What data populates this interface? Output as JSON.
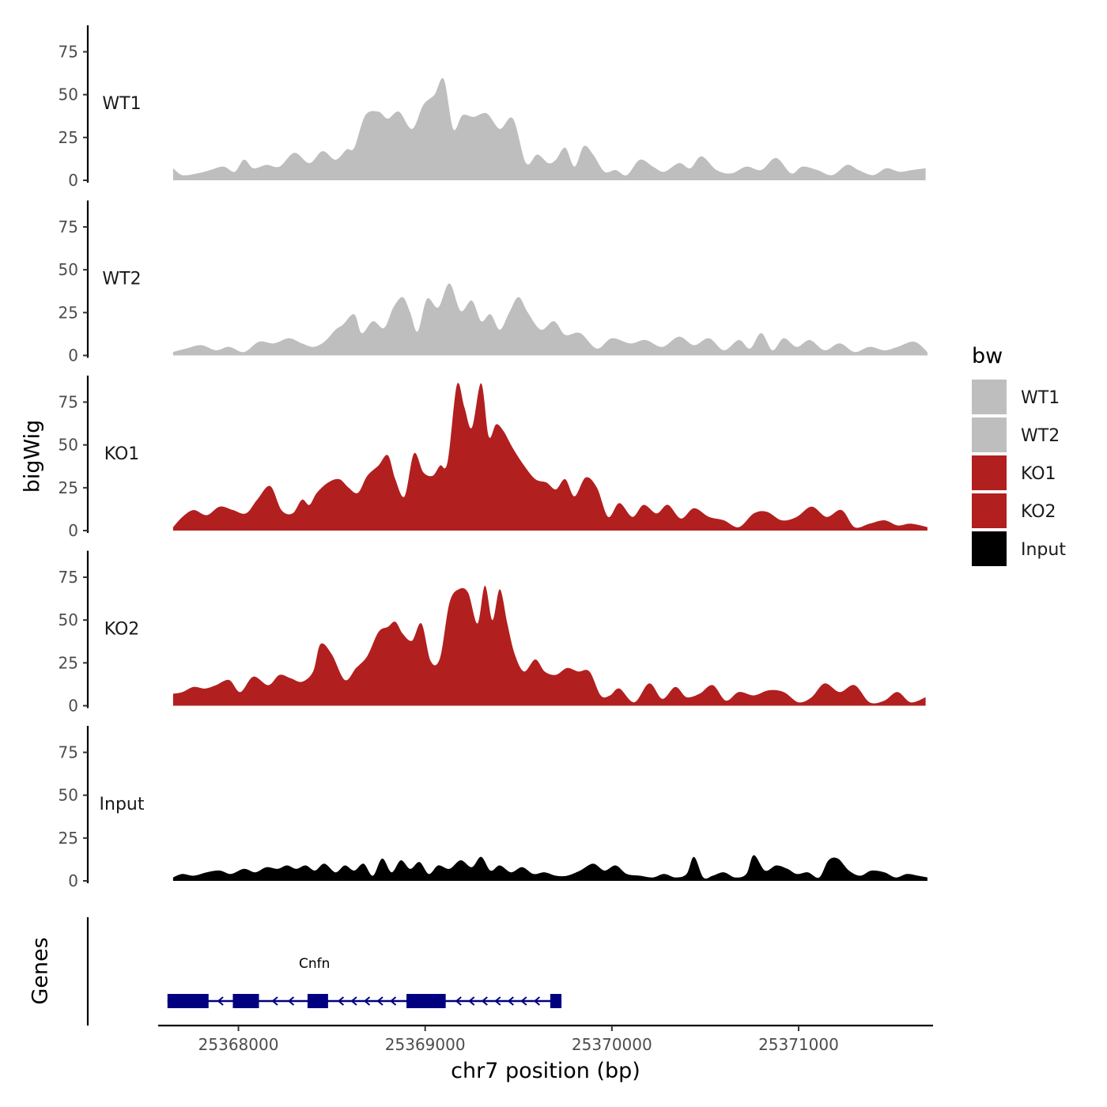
{
  "chart_data": {
    "type": "area",
    "xlabel": "chr7 position (bp)",
    "ylabel": "bigWig",
    "xlim": [
      25367570,
      25371720
    ],
    "ylim": [
      0,
      90
    ],
    "x_ticks": [
      25368000,
      25369000,
      25370000,
      25371000
    ],
    "y_ticks": [
      0,
      25,
      50,
      75
    ],
    "grid": false,
    "legend": {
      "title": "bw",
      "position": "right",
      "entries": [
        {
          "label": "WT1",
          "color": "#bebebe"
        },
        {
          "label": "WT2",
          "color": "#bebebe"
        },
        {
          "label": "KO1",
          "color": "#b21f1f"
        },
        {
          "label": "KO2",
          "color": "#b21f1f"
        },
        {
          "label": "Input",
          "color": "#000000"
        }
      ]
    },
    "series": [
      {
        "name": "WT1",
        "color": "#bebebe",
        "x": [
          25367650,
          25367700,
          25367780,
          25367850,
          25367920,
          25367980,
          25368030,
          25368080,
          25368150,
          25368220,
          25368300,
          25368380,
          25368450,
          25368520,
          25368580,
          25368620,
          25368680,
          25368750,
          25368800,
          25368860,
          25368930,
          25368990,
          25369050,
          25369100,
          25369150,
          25369200,
          25369260,
          25369330,
          25369400,
          25369470,
          25369540,
          25369600,
          25369660,
          25369700,
          25369750,
          25369800,
          25369850,
          25369900,
          25369960,
          25370020,
          25370080,
          25370150,
          25370220,
          25370280,
          25370360,
          25370420,
          25370480,
          25370560,
          25370640,
          25370720,
          25370800,
          25370880,
          25370960,
          25371020,
          25371100,
          25371180,
          25371260,
          25371320,
          25371400,
          25371470,
          25371540,
          25371610,
          25371680
        ],
        "values": [
          7,
          3,
          4,
          6,
          8,
          5,
          12,
          7,
          9,
          8,
          16,
          10,
          17,
          12,
          18,
          19,
          38,
          40,
          36,
          40,
          30,
          44,
          50,
          59,
          30,
          38,
          37,
          39,
          30,
          36,
          10,
          15,
          10,
          12,
          19,
          8,
          20,
          15,
          5,
          6,
          3,
          12,
          8,
          5,
          10,
          7,
          14,
          6,
          4,
          8,
          6,
          13,
          4,
          8,
          6,
          3,
          9,
          6,
          3,
          7,
          5,
          6,
          7
        ]
      },
      {
        "name": "WT2",
        "color": "#bebebe",
        "x": [
          25367650,
          25367720,
          25367800,
          25367880,
          25367950,
          25368030,
          25368110,
          25368190,
          25368270,
          25368340,
          25368400,
          25368460,
          25368520,
          25368560,
          25368620,
          25368660,
          25368720,
          25368780,
          25368830,
          25368880,
          25368920,
          25368960,
          25369010,
          25369070,
          25369130,
          25369190,
          25369250,
          25369300,
          25369350,
          25369400,
          25369450,
          25369500,
          25369550,
          25369620,
          25369690,
          25369750,
          25369830,
          25369920,
          25370000,
          25370100,
          25370180,
          25370270,
          25370360,
          25370440,
          25370520,
          25370600,
          25370680,
          25370740,
          25370800,
          25370860,
          25370920,
          25370990,
          25371060,
          25371140,
          25371220,
          25371300,
          25371380,
          25371460,
          25371530,
          25371620,
          25371690
        ],
        "values": [
          2,
          4,
          6,
          3,
          5,
          2,
          8,
          7,
          10,
          7,
          5,
          8,
          15,
          18,
          24,
          13,
          20,
          16,
          28,
          34,
          25,
          14,
          33,
          28,
          42,
          26,
          32,
          20,
          24,
          15,
          25,
          34,
          25,
          15,
          20,
          12,
          13,
          4,
          10,
          7,
          9,
          5,
          11,
          6,
          10,
          3,
          9,
          4,
          13,
          3,
          10,
          5,
          9,
          3,
          7,
          2,
          5,
          3,
          5,
          8,
          2
        ]
      },
      {
        "name": "KO1",
        "color": "#b21f1f",
        "x": [
          25367650,
          25367700,
          25367760,
          25367830,
          25367900,
          25367970,
          25368040,
          25368100,
          25368170,
          25368230,
          25368290,
          25368340,
          25368380,
          25368420,
          25368480,
          25368540,
          25368590,
          25368640,
          25368690,
          25368750,
          25368800,
          25368840,
          25368890,
          25368940,
          25368990,
          25369040,
          25369080,
          25369120,
          25369170,
          25369210,
          25369250,
          25369300,
          25369340,
          25369380,
          25369420,
          25369470,
          25369530,
          25369590,
          25369650,
          25369700,
          25369750,
          25369800,
          25369860,
          25369920,
          25369980,
          25370040,
          25370110,
          25370170,
          25370240,
          25370300,
          25370370,
          25370440,
          25370520,
          25370600,
          25370680,
          25370760,
          25370830,
          25370910,
          25370990,
          25371070,
          25371150,
          25371230,
          25371300,
          25371380,
          25371460,
          25371530,
          25371600,
          25371690
        ],
        "values": [
          2,
          8,
          12,
          9,
          14,
          12,
          10,
          18,
          26,
          12,
          10,
          18,
          15,
          22,
          28,
          30,
          25,
          22,
          32,
          38,
          44,
          30,
          20,
          45,
          34,
          32,
          38,
          40,
          85,
          72,
          60,
          86,
          55,
          62,
          58,
          48,
          38,
          30,
          28,
          24,
          30,
          20,
          31,
          25,
          8,
          16,
          8,
          15,
          10,
          15,
          7,
          13,
          8,
          6,
          2,
          10,
          11,
          6,
          8,
          14,
          8,
          12,
          2,
          4,
          6,
          3,
          4,
          2
        ]
      },
      {
        "name": "KO2",
        "color": "#b21f1f",
        "x": [
          25367650,
          25367700,
          25367760,
          25367820,
          25367880,
          25367950,
          25368010,
          25368080,
          25368160,
          25368220,
          25368280,
          25368340,
          25368400,
          25368440,
          25368500,
          25368570,
          25368630,
          25368690,
          25368750,
          25368800,
          25368840,
          25368880,
          25368930,
          25368980,
          25369030,
          25369080,
          25369130,
          25369180,
          25369230,
          25369280,
          25369320,
          25369360,
          25369400,
          25369440,
          25369480,
          25369530,
          25369590,
          25369640,
          25369700,
          25369760,
          25369820,
          25369880,
          25369940,
          25369990,
          25370040,
          25370120,
          25370200,
          25370270,
          25370340,
          25370400,
          25370470,
          25370540,
          25370610,
          25370680,
          25370760,
          25370840,
          25370920,
          25371000,
          25371070,
          25371140,
          25371220,
          25371300,
          25371380,
          25371460,
          25371530,
          25371600,
          25371680
        ],
        "values": [
          7,
          8,
          11,
          10,
          12,
          15,
          8,
          17,
          12,
          18,
          16,
          14,
          20,
          36,
          30,
          15,
          22,
          29,
          43,
          46,
          49,
          42,
          38,
          48,
          26,
          28,
          60,
          68,
          66,
          48,
          70,
          50,
          68,
          48,
          30,
          20,
          27,
          20,
          18,
          22,
          20,
          20,
          6,
          6,
          10,
          2,
          13,
          4,
          11,
          5,
          7,
          12,
          3,
          8,
          6,
          9,
          8,
          2,
          5,
          13,
          8,
          12,
          2,
          3,
          8,
          2,
          5
        ]
      },
      {
        "name": "Input",
        "color": "#000000",
        "x": [
          25367650,
          25367700,
          25367760,
          25367830,
          25367900,
          25367960,
          25368030,
          25368090,
          25368150,
          25368210,
          25368260,
          25368310,
          25368360,
          25368410,
          25368460,
          25368520,
          25368570,
          25368620,
          25368670,
          25368720,
          25368770,
          25368820,
          25368870,
          25368920,
          25368970,
          25369020,
          25369070,
          25369130,
          25369190,
          25369250,
          25369300,
          25369350,
          25369400,
          25369460,
          25369520,
          25369580,
          25369640,
          25369700,
          25369760,
          25369830,
          25369900,
          25369960,
          25370020,
          25370080,
          25370150,
          25370220,
          25370280,
          25370340,
          25370400,
          25370440,
          25370490,
          25370540,
          25370600,
          25370660,
          25370720,
          25370760,
          25370820,
          25370880,
          25370940,
          25370990,
          25371050,
          25371110,
          25371160,
          25371210,
          25371270,
          25371330,
          25371390,
          25371460,
          25371520,
          25371580,
          25371640,
          25371690
        ],
        "values": [
          2,
          4,
          3,
          5,
          6,
          4,
          7,
          5,
          8,
          7,
          9,
          7,
          9,
          6,
          10,
          5,
          9,
          6,
          10,
          3,
          13,
          5,
          12,
          7,
          11,
          4,
          9,
          7,
          12,
          8,
          14,
          6,
          9,
          5,
          8,
          4,
          5,
          3,
          3,
          6,
          10,
          6,
          9,
          4,
          3,
          2,
          4,
          2,
          4,
          14,
          2,
          3,
          5,
          2,
          4,
          15,
          6,
          9,
          7,
          4,
          5,
          2,
          12,
          13,
          6,
          3,
          6,
          5,
          2,
          4,
          3,
          2
        ]
      }
    ],
    "genes": [
      {
        "name": "Cnfn",
        "start": 25367620,
        "end": 25369730,
        "strand": "-",
        "exons": [
          [
            25367620,
            25367840
          ],
          [
            25367970,
            25368110
          ],
          [
            25368370,
            25368480
          ],
          [
            25368900,
            25369110
          ],
          [
            25369670,
            25369730
          ]
        ]
      }
    ],
    "genes_track_label": "Genes"
  }
}
